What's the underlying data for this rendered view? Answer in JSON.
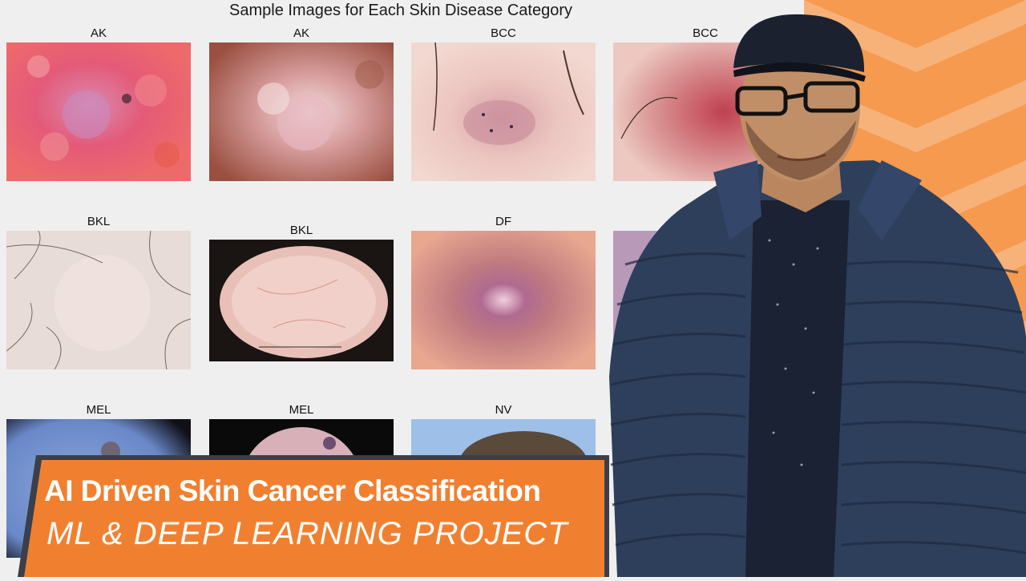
{
  "figure": {
    "title": "Sample Images for Each Skin Disease Category",
    "cells": [
      {
        "label": "AK"
      },
      {
        "label": "AK"
      },
      {
        "label": "BCC"
      },
      {
        "label": "BCC"
      },
      {
        "label": "BKL"
      },
      {
        "label": "BKL"
      },
      {
        "label": "DF"
      },
      {
        "label": "MEL"
      },
      {
        "label": "MEL"
      },
      {
        "label": "NV"
      }
    ]
  },
  "caption": {
    "title": "AI Driven Skin Cancer Classification",
    "subtitle": "ML & DEEP LEARNING PROJECT"
  },
  "colors": {
    "accent_orange": "#f08030",
    "panel_orange": "#f5a25a",
    "banner_border": "#3a3f4a",
    "jacket_navy": "#2b3a55"
  }
}
